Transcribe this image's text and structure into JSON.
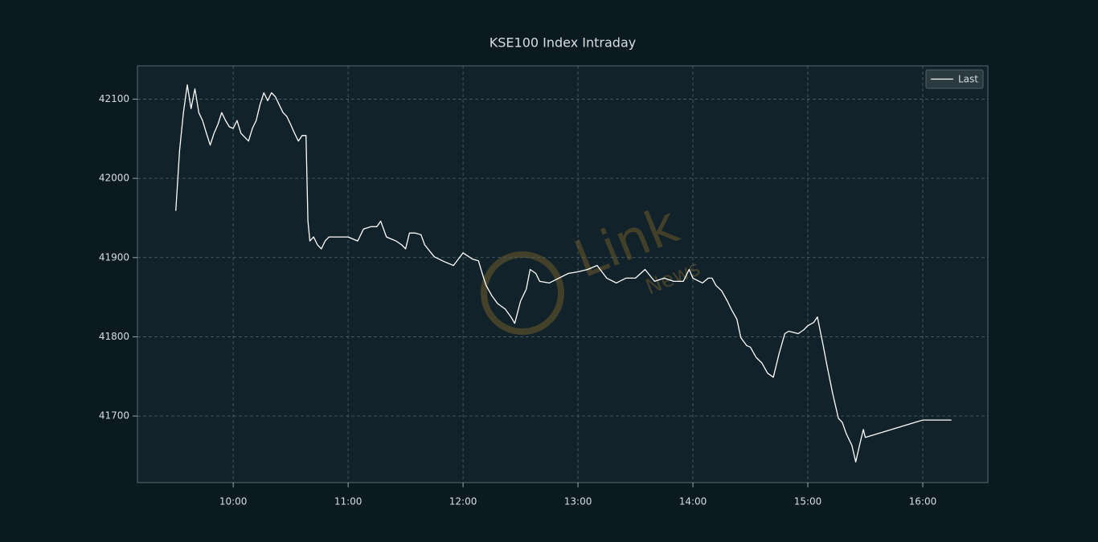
{
  "chart_data": {
    "type": "line",
    "title": "KSE100 Index Intraday",
    "watermark": [
      "Link",
      "News"
    ],
    "x": [
      "09:30",
      "09:32",
      "09:34",
      "09:36",
      "09:38",
      "09:40",
      "09:42",
      "09:44",
      "09:46",
      "09:48",
      "09:50",
      "09:52",
      "09:54",
      "09:56",
      "09:58",
      "10:00",
      "10:02",
      "10:04",
      "10:06",
      "10:08",
      "10:10",
      "10:12",
      "10:14",
      "10:16",
      "10:18",
      "10:20",
      "10:22",
      "10:24",
      "10:26",
      "10:28",
      "10:30",
      "10:32",
      "10:34",
      "10:36",
      "10:38",
      "10:39",
      "10:40",
      "10:42",
      "10:44",
      "10:46",
      "10:48",
      "10:50",
      "10:55",
      "11:00",
      "11:05",
      "11:08",
      "11:12",
      "11:15",
      "11:17",
      "11:20",
      "11:25",
      "11:28",
      "11:30",
      "11:32",
      "11:35",
      "11:38",
      "11:40",
      "11:45",
      "11:50",
      "11:55",
      "12:00",
      "12:05",
      "12:08",
      "12:10",
      "12:12",
      "12:15",
      "12:18",
      "12:22",
      "12:25",
      "12:27",
      "12:30",
      "12:33",
      "12:35",
      "12:38",
      "12:40",
      "12:45",
      "12:50",
      "12:55",
      "13:00",
      "13:05",
      "13:10",
      "13:15",
      "13:20",
      "13:25",
      "13:30",
      "13:35",
      "13:40",
      "13:45",
      "13:50",
      "13:55",
      "13:58",
      "14:00",
      "14:05",
      "14:08",
      "14:10",
      "14:12",
      "14:15",
      "14:18",
      "14:20",
      "14:23",
      "14:25",
      "14:28",
      "14:30",
      "14:33",
      "14:36",
      "14:39",
      "14:42",
      "14:45",
      "14:48",
      "14:50",
      "14:55",
      "14:58",
      "15:00",
      "15:03",
      "15:05",
      "15:08",
      "15:10",
      "15:13",
      "15:16",
      "15:18",
      "15:20",
      "15:23",
      "15:25",
      "15:27",
      "15:29",
      "15:30",
      "16:00",
      "16:15"
    ],
    "series": [
      {
        "name": "Last",
        "color": "#ffffff",
        "values": [
          41959,
          42035,
          42083,
          42118,
          42088,
          42113,
          42083,
          42073,
          42057,
          42042,
          42057,
          42068,
          42083,
          42073,
          42065,
          42063,
          42073,
          42057,
          42052,
          42047,
          42063,
          42073,
          42093,
          42108,
          42098,
          42108,
          42103,
          42093,
          42083,
          42078,
          42068,
          42057,
          42047,
          42054,
          42054,
          41946,
          41921,
          41926,
          41916,
          41911,
          41921,
          41926,
          41926,
          41926,
          41921,
          41936,
          41939,
          41939,
          41946,
          41926,
          41921,
          41916,
          41911,
          41931,
          41931,
          41929,
          41916,
          41901,
          41895,
          41890,
          41906,
          41898,
          41896,
          41880,
          41865,
          41852,
          41842,
          41835,
          41825,
          41817,
          41845,
          41860,
          41885,
          41880,
          41870,
          41868,
          41874,
          41880,
          41882,
          41885,
          41890,
          41874,
          41868,
          41874,
          41874,
          41885,
          41870,
          41874,
          41870,
          41870,
          41885,
          41874,
          41868,
          41874,
          41874,
          41865,
          41858,
          41845,
          41835,
          41822,
          41799,
          41789,
          41787,
          41774,
          41767,
          41754,
          41749,
          41779,
          41804,
          41807,
          41804,
          41809,
          41814,
          41818,
          41825,
          41789,
          41764,
          41728,
          41697,
          41692,
          41678,
          41663,
          41642,
          41663,
          41683,
          41673,
          41695,
          41695
        ]
      }
    ],
    "xlim": [
      "09:10",
      "16:34"
    ],
    "xticks": [
      "10:00",
      "11:00",
      "12:00",
      "13:00",
      "14:00",
      "15:00",
      "16:00"
    ],
    "ylim": [
      41616,
      42142
    ],
    "yticks": [
      41700,
      41800,
      41900,
      42000,
      42100
    ],
    "grid": true,
    "legend": "upper right"
  }
}
